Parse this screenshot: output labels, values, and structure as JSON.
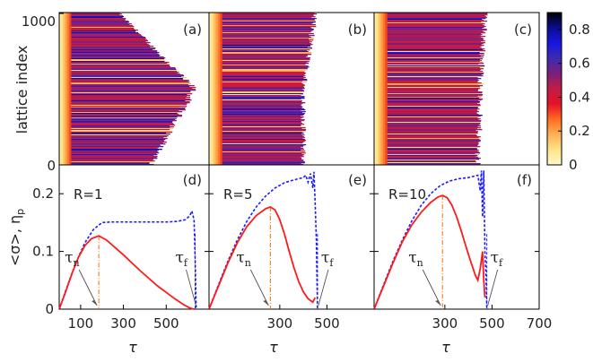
{
  "chart_data": {
    "type": "heatmap",
    "colorbar": {
      "ticks": [
        "0.8",
        "0.6",
        "0.4",
        "0.2",
        "0"
      ],
      "tick_values": [
        0.8,
        0.6,
        0.4,
        0.2,
        0.0
      ],
      "range": [
        0,
        0.9
      ],
      "stops": [
        "#fff9c8",
        "#ffe38a",
        "#fdb153",
        "#ff6b20",
        "#e5112a",
        "#c11d45",
        "#7a1f7b",
        "#3b2bb0",
        "#1616e0",
        "#0c0c8f",
        "#000000"
      ]
    },
    "top_panels": [
      {
        "label": "(a)",
        "R": 1,
        "front_tau": [
          280,
          630,
          430
        ],
        "lattice_range": [
          0,
          1000
        ]
      },
      {
        "label": "(b)",
        "R": 5,
        "front_tau": [
          450,
          400,
          400
        ],
        "lattice_range": [
          0,
          1000
        ]
      },
      {
        "label": "(c)",
        "R": 10,
        "front_tau": [
          470,
          450,
          440
        ],
        "lattice_range": [
          0,
          1000
        ]
      }
    ],
    "top_ylabel": "lattice index",
    "top_yticks": [
      "1000",
      "0"
    ],
    "bottom_panels": [
      {
        "label": "(d)",
        "r_label": "R=1",
        "sigma_tau": [
          0,
          30,
          60,
          90,
          120,
          150,
          185,
          220,
          260,
          300,
          340,
          380,
          420,
          460,
          500,
          540,
          580,
          610,
          630
        ],
        "sigma_vals": [
          0,
          0.03,
          0.062,
          0.09,
          0.11,
          0.122,
          0.127,
          0.12,
          0.107,
          0.094,
          0.08,
          0.066,
          0.053,
          0.04,
          0.029,
          0.018,
          0.008,
          0.002,
          0
        ],
        "np_tau": [
          0,
          40,
          80,
          120,
          160,
          200,
          240,
          280,
          320,
          360,
          400,
          450,
          500,
          550,
          590,
          610,
          620,
          630,
          635,
          640
        ],
        "np_vals": [
          0,
          0.042,
          0.082,
          0.115,
          0.138,
          0.15,
          0.151,
          0.151,
          0.151,
          0.151,
          0.151,
          0.151,
          0.151,
          0.152,
          0.155,
          0.162,
          0.17,
          0.155,
          0.09,
          0
        ],
        "tau_n": 185,
        "tau_f": 635,
        "tau_n_label": "τ",
        "tau_n_sub": "n",
        "tau_f_label": "τ",
        "tau_f_sub": "f"
      },
      {
        "label": "(e)",
        "r_label": "R=5",
        "sigma_tau": [
          0,
          40,
          80,
          120,
          160,
          200,
          240,
          260,
          280,
          300,
          320,
          340,
          360,
          380,
          400,
          420,
          440,
          450
        ],
        "sigma_vals": [
          0,
          0.04,
          0.08,
          0.115,
          0.143,
          0.162,
          0.174,
          0.177,
          0.172,
          0.155,
          0.13,
          0.1,
          0.072,
          0.048,
          0.03,
          0.018,
          0.012,
          0.02
        ],
        "np_tau": [
          0,
          40,
          80,
          120,
          160,
          200,
          240,
          280,
          320,
          360,
          380,
          400,
          410,
          420,
          430,
          440,
          445,
          450,
          455,
          460
        ],
        "np_vals": [
          0,
          0.042,
          0.083,
          0.12,
          0.152,
          0.177,
          0.196,
          0.21,
          0.219,
          0.224,
          0.226,
          0.228,
          0.232,
          0.22,
          0.235,
          0.21,
          0.238,
          0.185,
          0.12,
          0
        ],
        "tau_n": 260,
        "tau_f": 460,
        "tau_n_label": "τ",
        "tau_n_sub": "n",
        "tau_f_label": "τ",
        "tau_f_sub": "f"
      },
      {
        "label": "(f)",
        "r_label": "R=10",
        "sigma_tau": [
          0,
          40,
          80,
          120,
          160,
          200,
          240,
          270,
          290,
          310,
          330,
          350,
          370,
          390,
          410,
          430,
          440,
          450,
          460,
          465,
          470
        ],
        "sigma_vals": [
          0,
          0.04,
          0.08,
          0.117,
          0.146,
          0.168,
          0.185,
          0.194,
          0.197,
          0.193,
          0.18,
          0.16,
          0.135,
          0.108,
          0.082,
          0.058,
          0.05,
          0.07,
          0.1,
          0.05,
          0.02
        ],
        "np_tau": [
          0,
          40,
          80,
          120,
          160,
          200,
          240,
          280,
          320,
          360,
          400,
          420,
          440,
          450,
          455,
          460,
          465,
          470,
          475,
          478
        ],
        "np_vals": [
          0,
          0.042,
          0.083,
          0.12,
          0.153,
          0.18,
          0.2,
          0.214,
          0.222,
          0.226,
          0.228,
          0.23,
          0.232,
          0.205,
          0.24,
          0.16,
          0.24,
          0.1,
          0.05,
          0
        ],
        "tau_n": 290,
        "tau_f": 478,
        "tau_n_label": "τ",
        "tau_n_sub": "n",
        "tau_f_label": "τ",
        "tau_f_sub": "f"
      }
    ],
    "bottom_ylabel": "<σ>, η",
    "bottom_ylabel_sub": "p",
    "bottom_yticks": [
      "0.2",
      "0.1",
      "0"
    ],
    "bottom_ytick_values": [
      0.2,
      0.1,
      0.0
    ],
    "bottom_ylim": [
      0,
      0.25
    ],
    "xlabel": "τ",
    "xticks_panel1": [
      "100",
      "300",
      "500"
    ],
    "xticks_panel1_values": [
      100,
      300,
      500
    ],
    "xticks_panel2": [
      "300",
      "500"
    ],
    "xticks_panel2_values": [
      300,
      500
    ],
    "xticks_panel3": [
      "300",
      "500",
      "700"
    ],
    "xticks_panel3_values": [
      300,
      500,
      700
    ],
    "xlim": [
      0,
      700
    ],
    "series_colors": {
      "sigma": "#ff1a1a",
      "np": "#1a1aff",
      "guide_sigma": "#ff6a00",
      "guide_np": "#1a1aff"
    }
  }
}
